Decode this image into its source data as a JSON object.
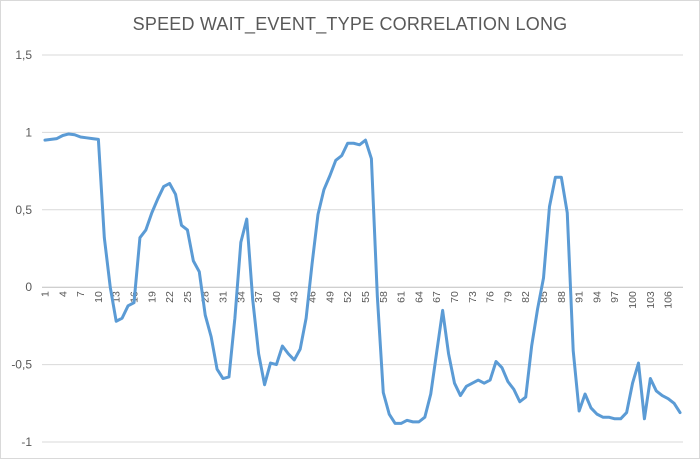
{
  "chart_data": {
    "type": "line",
    "title": "SPEED WAIT_EVENT_TYPE CORRELATION LONG",
    "xlabel": "",
    "ylabel": "",
    "ylim": [
      -1,
      1.5
    ],
    "y_ticks": [
      "1,5",
      "1",
      "0,5",
      "0",
      "-0,5",
      "-1"
    ],
    "y_tick_values": [
      1.5,
      1,
      0.5,
      0,
      -0.5,
      -1
    ],
    "x_tick_labels": [
      "1",
      "4",
      "7",
      "10",
      "13",
      "16",
      "19",
      "22",
      "25",
      "28",
      "31",
      "34",
      "37",
      "40",
      "43",
      "46",
      "49",
      "52",
      "55",
      "58",
      "61",
      "64",
      "67",
      "70",
      "73",
      "76",
      "79",
      "82",
      "85",
      "88",
      "91",
      "94",
      "97",
      "100",
      "103",
      "106"
    ],
    "grid": true,
    "legend": "none",
    "line_color": "#5b9bd5",
    "series": [
      {
        "values": [
          0.95,
          0.955,
          0.96,
          0.98,
          0.99,
          0.985,
          0.97,
          0.965,
          0.96,
          0.955,
          0.32,
          0.0,
          -0.22,
          -0.2,
          -0.12,
          -0.1,
          0.32,
          0.37,
          0.48,
          0.57,
          0.65,
          0.67,
          0.6,
          0.4,
          0.37,
          0.17,
          0.1,
          -0.18,
          -0.32,
          -0.53,
          -0.59,
          -0.58,
          -0.2,
          0.29,
          0.44,
          -0.08,
          -0.43,
          -0.63,
          -0.49,
          -0.5,
          -0.38,
          -0.43,
          -0.47,
          -0.4,
          -0.2,
          0.15,
          0.47,
          0.63,
          0.72,
          0.82,
          0.85,
          0.93,
          0.93,
          0.92,
          0.95,
          0.83,
          -0.06,
          -0.68,
          -0.82,
          -0.88,
          -0.88,
          -0.86,
          -0.87,
          -0.87,
          -0.84,
          -0.69,
          -0.42,
          -0.15,
          -0.43,
          -0.62,
          -0.7,
          -0.64,
          -0.62,
          -0.6,
          -0.62,
          -0.6,
          -0.48,
          -0.52,
          -0.61,
          -0.66,
          -0.74,
          -0.71,
          -0.38,
          -0.14,
          0.06,
          0.52,
          0.71,
          0.71,
          0.48,
          -0.41,
          -0.8,
          -0.69,
          -0.78,
          -0.82,
          -0.84,
          -0.84,
          -0.85,
          -0.85,
          -0.81,
          -0.62,
          -0.49,
          -0.85,
          -0.59,
          -0.67,
          -0.7,
          -0.72,
          -0.75,
          -0.81
        ]
      }
    ]
  }
}
